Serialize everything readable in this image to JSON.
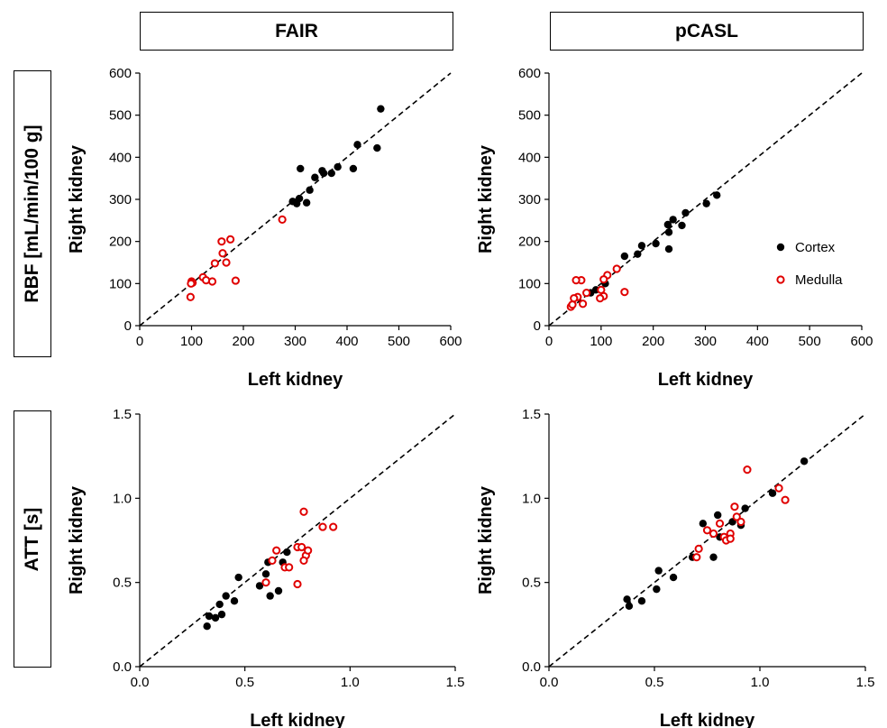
{
  "column_headers": [
    "FAIR",
    "pCASL"
  ],
  "row_labels": [
    "RBF [mL/min/100 g]",
    "ATT [s]"
  ],
  "legend": [
    {
      "label": "Cortex",
      "color": "#000000",
      "marker": "filled-circle"
    },
    {
      "label": "Medulla",
      "color": "#e00000",
      "marker": "open-circle"
    }
  ],
  "chart_data": [
    {
      "type": "scatter",
      "column": "FAIR",
      "row": "RBF [mL/min/100 g]",
      "xlabel": "Left kidney",
      "ylabel": "Right kidney",
      "xlim": [
        0,
        600
      ],
      "ylim": [
        0,
        600
      ],
      "xticks": [
        0,
        100,
        200,
        300,
        400,
        500,
        600
      ],
      "yticks": [
        0,
        100,
        200,
        300,
        400,
        500,
        600
      ],
      "identity_line": true,
      "series": [
        {
          "name": "Cortex",
          "points": [
            [
              465,
              515
            ],
            [
              420,
              430
            ],
            [
              458,
              422
            ],
            [
              310,
              373
            ],
            [
              412,
              373
            ],
            [
              382,
              377
            ],
            [
              370,
              362
            ],
            [
              352,
              368
            ],
            [
              355,
              362
            ],
            [
              338,
              352
            ],
            [
              328,
              322
            ],
            [
              322,
              292
            ],
            [
              308,
              302
            ],
            [
              303,
              290
            ],
            [
              295,
              295
            ]
          ]
        },
        {
          "name": "Medulla",
          "points": [
            [
              275,
              252
            ],
            [
              175,
              205
            ],
            [
              158,
              200
            ],
            [
              160,
              172
            ],
            [
              167,
              150
            ],
            [
              145,
              148
            ],
            [
              122,
              115
            ],
            [
              128,
              108
            ],
            [
              140,
              105
            ],
            [
              185,
              107
            ],
            [
              100,
              105
            ],
            [
              102,
              102
            ],
            [
              99,
              100
            ],
            [
              98,
              68
            ]
          ]
        }
      ]
    },
    {
      "type": "scatter",
      "column": "pCASL",
      "row": "RBF [mL/min/100 g]",
      "xlabel": "Left kidney",
      "ylabel": "Right kidney",
      "xlim": [
        0,
        600
      ],
      "ylim": [
        0,
        600
      ],
      "xticks": [
        0,
        100,
        200,
        300,
        400,
        500,
        600
      ],
      "yticks": [
        0,
        100,
        200,
        300,
        400,
        500,
        600
      ],
      "identity_line": true,
      "series": [
        {
          "name": "Cortex",
          "points": [
            [
              322,
              310
            ],
            [
              302,
              290
            ],
            [
              262,
              268
            ],
            [
              255,
              238
            ],
            [
              238,
              252
            ],
            [
              228,
              240
            ],
            [
              230,
              222
            ],
            [
              230,
              182
            ],
            [
              205,
              195
            ],
            [
              178,
              190
            ],
            [
              170,
              170
            ],
            [
              145,
              165
            ],
            [
              108,
              100
            ],
            [
              90,
              85
            ],
            [
              80,
              78
            ]
          ]
        },
        {
          "name": "Medulla",
          "points": [
            [
              130,
              135
            ],
            [
              112,
              120
            ],
            [
              105,
              110
            ],
            [
              62,
              108
            ],
            [
              52,
              108
            ],
            [
              100,
              85
            ],
            [
              105,
              70
            ],
            [
              145,
              80
            ],
            [
              98,
              65
            ],
            [
              72,
              78
            ],
            [
              65,
              52
            ],
            [
              55,
              68
            ],
            [
              48,
              65
            ],
            [
              42,
              45
            ],
            [
              45,
              50
            ]
          ]
        }
      ]
    },
    {
      "type": "scatter",
      "column": "FAIR",
      "row": "ATT [s]",
      "xlabel": "Left kidney",
      "ylabel": "Right kidney",
      "xlim": [
        0,
        1.5
      ],
      "ylim": [
        0,
        1.5
      ],
      "xticks": [
        0.0,
        0.5,
        1.0,
        1.5
      ],
      "yticks": [
        0.0,
        0.5,
        1.0,
        1.5
      ],
      "identity_line": true,
      "series": [
        {
          "name": "Cortex",
          "points": [
            [
              0.32,
              0.24
            ],
            [
              0.33,
              0.3
            ],
            [
              0.36,
              0.29
            ],
            [
              0.39,
              0.31
            ],
            [
              0.38,
              0.37
            ],
            [
              0.41,
              0.42
            ],
            [
              0.45,
              0.39
            ],
            [
              0.47,
              0.53
            ],
            [
              0.57,
              0.48
            ],
            [
              0.6,
              0.55
            ],
            [
              0.61,
              0.62
            ],
            [
              0.62,
              0.42
            ],
            [
              0.66,
              0.45
            ],
            [
              0.68,
              0.62
            ],
            [
              0.7,
              0.68
            ]
          ]
        },
        {
          "name": "Medulla",
          "points": [
            [
              0.6,
              0.5
            ],
            [
              0.63,
              0.63
            ],
            [
              0.65,
              0.69
            ],
            [
              0.69,
              0.59
            ],
            [
              0.71,
              0.59
            ],
            [
              0.75,
              0.71
            ],
            [
              0.77,
              0.71
            ],
            [
              0.79,
              0.66
            ],
            [
              0.8,
              0.69
            ],
            [
              0.78,
              0.63
            ],
            [
              0.78,
              0.92
            ],
            [
              0.87,
              0.83
            ],
            [
              0.92,
              0.83
            ],
            [
              0.75,
              0.49
            ]
          ]
        }
      ]
    },
    {
      "type": "scatter",
      "column": "pCASL",
      "row": "ATT [s]",
      "xlabel": "Left kidney",
      "ylabel": "Right kidney",
      "xlim": [
        0,
        1.5
      ],
      "ylim": [
        0,
        1.5
      ],
      "xticks": [
        0.0,
        0.5,
        1.0,
        1.5
      ],
      "yticks": [
        0.0,
        0.5,
        1.0,
        1.5
      ],
      "identity_line": true,
      "series": [
        {
          "name": "Cortex",
          "points": [
            [
              0.37,
              0.4
            ],
            [
              0.38,
              0.36
            ],
            [
              0.44,
              0.39
            ],
            [
              0.51,
              0.46
            ],
            [
              0.52,
              0.57
            ],
            [
              0.59,
              0.53
            ],
            [
              0.68,
              0.65
            ],
            [
              0.73,
              0.85
            ],
            [
              0.78,
              0.65
            ],
            [
              0.8,
              0.9
            ],
            [
              0.81,
              0.77
            ],
            [
              0.87,
              0.86
            ],
            [
              0.91,
              0.84
            ],
            [
              0.93,
              0.94
            ],
            [
              1.06,
              1.03
            ],
            [
              1.21,
              1.22
            ]
          ]
        },
        {
          "name": "Medulla",
          "points": [
            [
              0.7,
              0.65
            ],
            [
              0.71,
              0.7
            ],
            [
              0.75,
              0.81
            ],
            [
              0.78,
              0.79
            ],
            [
              0.81,
              0.85
            ],
            [
              0.83,
              0.77
            ],
            [
              0.84,
              0.75
            ],
            [
              0.86,
              0.79
            ],
            [
              0.86,
              0.76
            ],
            [
              0.88,
              0.95
            ],
            [
              0.89,
              0.89
            ],
            [
              0.91,
              0.86
            ],
            [
              0.94,
              1.17
            ],
            [
              1.09,
              1.06
            ],
            [
              1.12,
              0.99
            ]
          ]
        }
      ]
    }
  ]
}
